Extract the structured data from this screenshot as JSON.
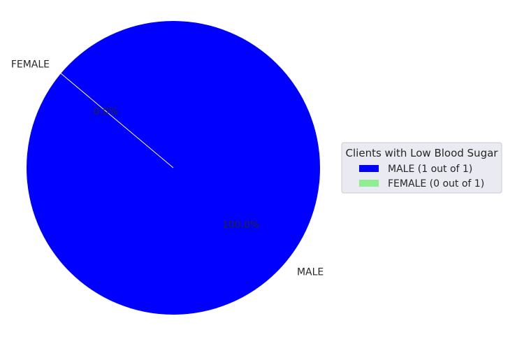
{
  "chart_data": {
    "type": "pie",
    "categories": [
      "MALE",
      "FEMALE"
    ],
    "values": [
      1,
      0
    ],
    "percent_labels": [
      "100.0%",
      "0.0%"
    ],
    "colors": [
      "#0000ff",
      "#90ee90"
    ],
    "start_angle_deg": 140,
    "legend": {
      "title": "Clients with Low Blood Sugar",
      "placement": "center-right",
      "entries": [
        "MALE (1 out of 1)",
        "FEMALE (0 out of 1)"
      ]
    }
  }
}
